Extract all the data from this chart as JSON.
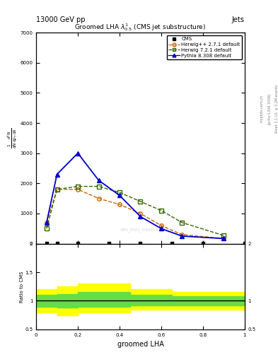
{
  "header_left": "13000 GeV pp",
  "header_right": "Jets",
  "plot_title": "Groomed LHA $\\lambda^{1}_{0.5}$ (CMS jet substructure)",
  "xlabel": "groomed LHA",
  "ylabel_ratio": "Ratio to CMS",
  "watermark": "CMS_2021_I1920187",
  "rivet_label": "Rivet 3.1.10, ≥ 3.2M events",
  "arxiv_label": "[arXiv:1306.3436]",
  "mcplots_label": "mcplots.cern.ch",
  "x_pts": [
    0.05,
    0.1,
    0.2,
    0.3,
    0.4,
    0.5,
    0.6,
    0.7,
    0.9
  ],
  "herwigpp_y": [
    700,
    1800,
    1800,
    1500,
    1300,
    1000,
    600,
    300,
    170
  ],
  "herwig721_y": [
    500,
    1800,
    1900,
    1900,
    1700,
    1400,
    1100,
    700,
    270
  ],
  "pythia_y": [
    700,
    2300,
    3000,
    2100,
    1600,
    900,
    500,
    250,
    170
  ],
  "cms_x": [
    0.05,
    0.1,
    0.2,
    0.35,
    0.5,
    0.65,
    0.8,
    1.0
  ],
  "ylim_main": [
    0,
    7000
  ],
  "ylim_ratio": [
    0.5,
    2.0
  ],
  "xlim": [
    0.0,
    1.0
  ],
  "yticks_main": [
    0,
    1000,
    2000,
    3000,
    4000,
    5000,
    6000,
    7000
  ],
  "ytick_labels_main": [
    "0",
    "1000",
    "2000",
    "3000",
    "4000",
    "5000",
    "6000",
    "7000"
  ],
  "color_cms": "#000000",
  "color_herwigpp": "#cc6600",
  "color_herwig721": "#336600",
  "color_pythia": "#0000cc",
  "ratio_x_edges": [
    0.0,
    0.1,
    0.2,
    0.45,
    0.65,
    1.0
  ],
  "band_yellow_lo": [
    0.8,
    0.75,
    0.8,
    0.85,
    0.85
  ],
  "band_yellow_hi": [
    1.2,
    1.25,
    1.3,
    1.2,
    1.15
  ],
  "band_green_lo": [
    0.9,
    0.88,
    0.9,
    0.92,
    0.92
  ],
  "band_green_hi": [
    1.1,
    1.12,
    1.15,
    1.1,
    1.08
  ]
}
